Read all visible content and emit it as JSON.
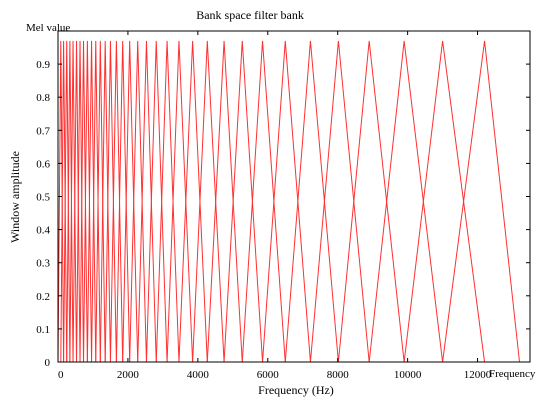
{
  "chart_data": {
    "type": "line",
    "title": "Bank space filter bank",
    "subtitle": "Mel value",
    "xlabel": "Frequency (Hz)",
    "ylabel": "Window amplitude",
    "x_extra_label": "Frequency",
    "xlim": [
      0,
      13500
    ],
    "ylim": [
      0,
      1
    ],
    "x_ticks": [
      0,
      2000,
      4000,
      6000,
      8000,
      10000,
      12000
    ],
    "x_tick_labels": [
      "0",
      "2000",
      "4000",
      "6000",
      "8000",
      "10000",
      "12000"
    ],
    "y_ticks": [
      0,
      0.1,
      0.2,
      0.3,
      0.4,
      0.5,
      0.6,
      0.7,
      0.8,
      0.9
    ],
    "y_tick_labels": [
      "0",
      "0.1",
      "0.2",
      "0.3",
      "0.4",
      "0.5",
      "0.6",
      "0.7",
      "0.8",
      "0.9"
    ],
    "grid": false,
    "series_color": "#ff3030",
    "series": [
      {
        "values": [
          [
            0,
            0
          ],
          [
            80,
            0.97
          ],
          [
            160,
            0
          ]
        ]
      },
      {
        "values": [
          [
            80,
            0
          ],
          [
            160,
            0.97
          ],
          [
            250,
            0
          ]
        ]
      },
      {
        "values": [
          [
            160,
            0
          ],
          [
            250,
            0.97
          ],
          [
            340,
            0
          ]
        ]
      },
      {
        "values": [
          [
            250,
            0
          ],
          [
            340,
            0.97
          ],
          [
            430,
            0
          ]
        ]
      },
      {
        "values": [
          [
            340,
            0
          ],
          [
            430,
            0.97
          ],
          [
            530,
            0
          ]
        ]
      },
      {
        "values": [
          [
            430,
            0
          ],
          [
            530,
            0.97
          ],
          [
            630,
            0
          ]
        ]
      },
      {
        "values": [
          [
            530,
            0
          ],
          [
            630,
            0.97
          ],
          [
            730,
            0
          ]
        ]
      },
      {
        "values": [
          [
            630,
            0
          ],
          [
            730,
            0.97
          ],
          [
            840,
            0
          ]
        ]
      },
      {
        "values": [
          [
            730,
            0
          ],
          [
            840,
            0.97
          ],
          [
            960,
            0
          ]
        ]
      },
      {
        "values": [
          [
            840,
            0
          ],
          [
            960,
            0.97
          ],
          [
            1080,
            0
          ]
        ]
      },
      {
        "values": [
          [
            960,
            0
          ],
          [
            1080,
            0.97
          ],
          [
            1210,
            0
          ]
        ]
      },
      {
        "values": [
          [
            1080,
            0
          ],
          [
            1210,
            0.97
          ],
          [
            1350,
            0
          ]
        ]
      },
      {
        "values": [
          [
            1210,
            0
          ],
          [
            1350,
            0.97
          ],
          [
            1500,
            0
          ]
        ]
      },
      {
        "values": [
          [
            1350,
            0
          ],
          [
            1500,
            0.97
          ],
          [
            1670,
            0
          ]
        ]
      },
      {
        "values": [
          [
            1500,
            0
          ],
          [
            1670,
            0.97
          ],
          [
            1850,
            0
          ]
        ]
      },
      {
        "values": [
          [
            1670,
            0
          ],
          [
            1850,
            0.97
          ],
          [
            2050,
            0
          ]
        ]
      },
      {
        "values": [
          [
            1850,
            0
          ],
          [
            2050,
            0.97
          ],
          [
            2280,
            0
          ]
        ]
      },
      {
        "values": [
          [
            2050,
            0
          ],
          [
            2280,
            0.97
          ],
          [
            2530,
            0
          ]
        ]
      },
      {
        "values": [
          [
            2280,
            0
          ],
          [
            2530,
            0.97
          ],
          [
            2810,
            0
          ]
        ]
      },
      {
        "values": [
          [
            2530,
            0
          ],
          [
            2810,
            0.97
          ],
          [
            3120,
            0
          ]
        ]
      },
      {
        "values": [
          [
            2810,
            0
          ],
          [
            3120,
            0.97
          ],
          [
            3460,
            0
          ]
        ]
      },
      {
        "values": [
          [
            3120,
            0
          ],
          [
            3460,
            0.97
          ],
          [
            3850,
            0
          ]
        ]
      },
      {
        "values": [
          [
            3460,
            0
          ],
          [
            3850,
            0.97
          ],
          [
            4270,
            0
          ]
        ]
      },
      {
        "values": [
          [
            3850,
            0
          ],
          [
            4270,
            0.97
          ],
          [
            4750,
            0
          ]
        ]
      },
      {
        "values": [
          [
            4270,
            0
          ],
          [
            4750,
            0.97
          ],
          [
            5270,
            0
          ]
        ]
      },
      {
        "values": [
          [
            4750,
            0
          ],
          [
            5270,
            0.97
          ],
          [
            5850,
            0
          ]
        ]
      },
      {
        "values": [
          [
            5270,
            0
          ],
          [
            5850,
            0.97
          ],
          [
            6500,
            0
          ]
        ]
      },
      {
        "values": [
          [
            5850,
            0
          ],
          [
            6500,
            0.97
          ],
          [
            7220,
            0
          ]
        ]
      },
      {
        "values": [
          [
            6500,
            0
          ],
          [
            7220,
            0.97
          ],
          [
            8020,
            0
          ]
        ]
      },
      {
        "values": [
          [
            7220,
            0
          ],
          [
            8020,
            0.97
          ],
          [
            8900,
            0
          ]
        ]
      },
      {
        "values": [
          [
            8020,
            0
          ],
          [
            8900,
            0.97
          ],
          [
            9900,
            0
          ]
        ]
      },
      {
        "values": [
          [
            8900,
            0
          ],
          [
            9900,
            0.97
          ],
          [
            11000,
            0
          ]
        ]
      },
      {
        "values": [
          [
            9900,
            0
          ],
          [
            11000,
            0.97
          ],
          [
            12200,
            0
          ]
        ]
      },
      {
        "values": [
          [
            11000,
            0
          ],
          [
            12200,
            0.97
          ],
          [
            13200,
            0
          ]
        ]
      }
    ]
  }
}
